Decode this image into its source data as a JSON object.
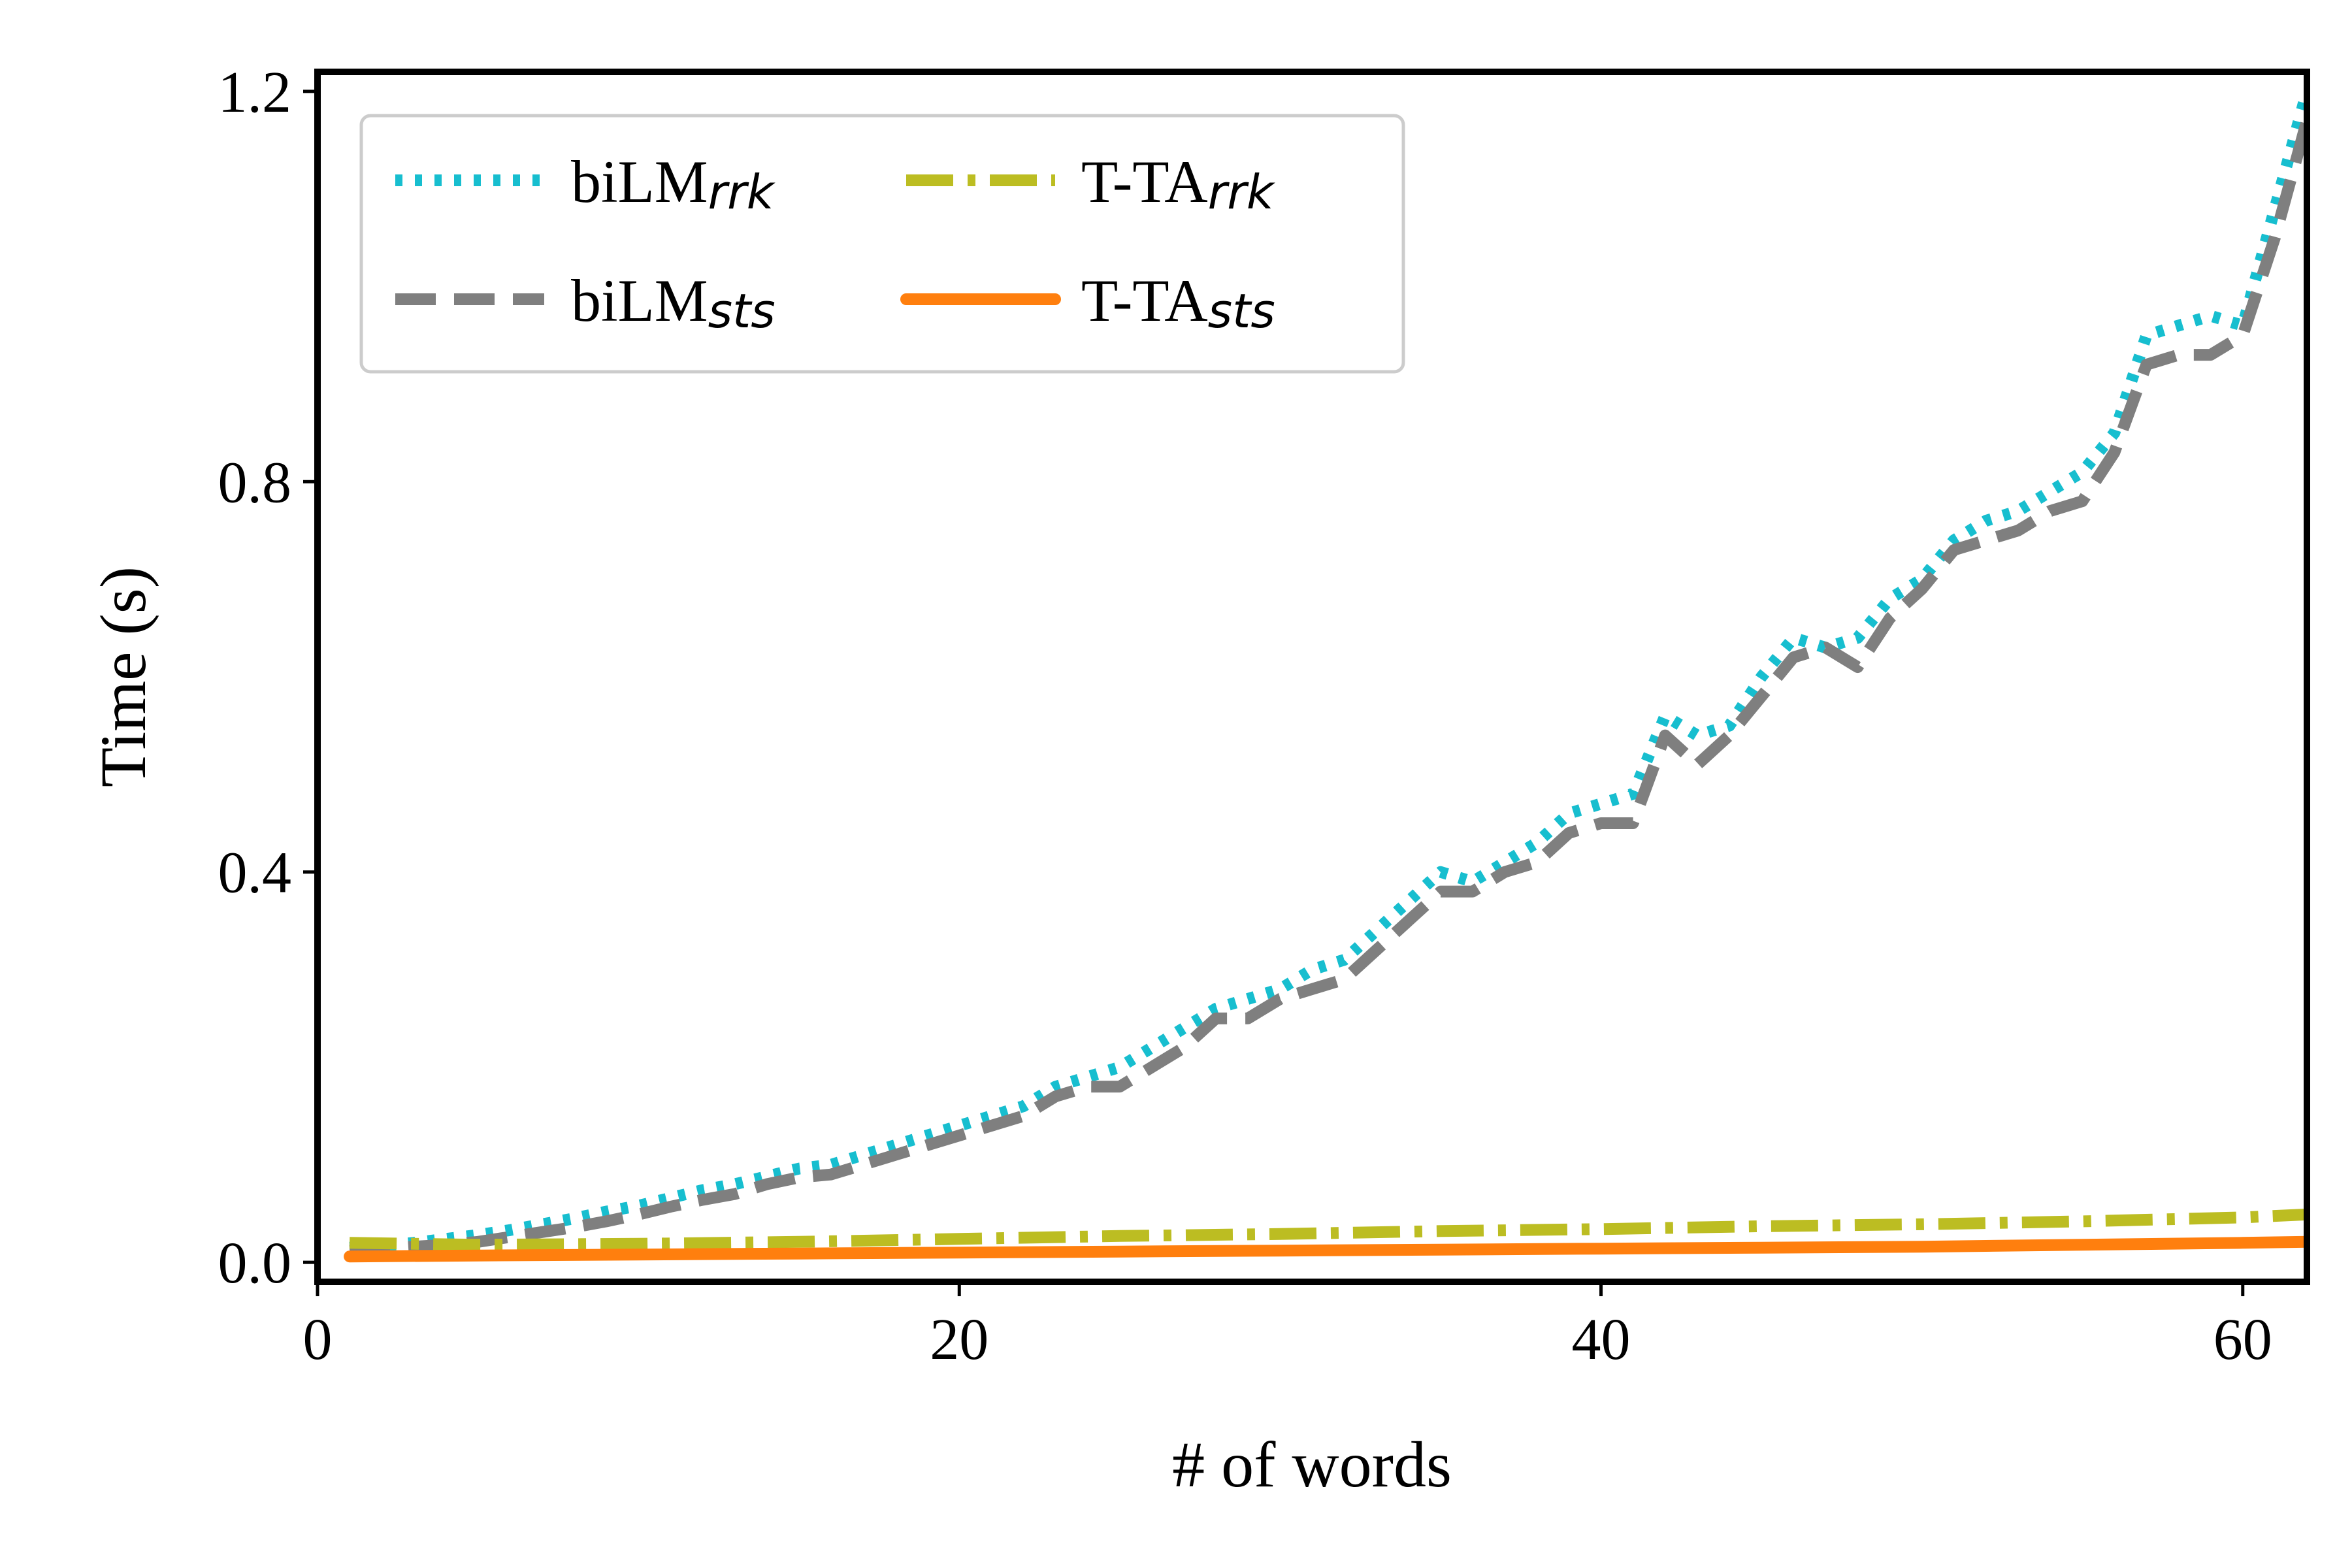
{
  "chart_data": {
    "type": "line",
    "title": "",
    "xlabel": "# of words",
    "ylabel": "Time (s)",
    "xlim": [
      0,
      62
    ],
    "ylim": [
      -0.02,
      1.22
    ],
    "xticks": [
      0,
      20,
      40,
      60
    ],
    "xtick_labels": [
      "0",
      "20",
      "40",
      "60"
    ],
    "yticks": [
      0.0,
      0.4,
      0.8,
      1.2
    ],
    "ytick_labels": [
      "0.0",
      "0.4",
      "0.8",
      "1.2"
    ],
    "grid": false,
    "legend": {
      "position": "top-left",
      "columns": 2
    },
    "series": [
      {
        "name": "biLMrrk",
        "label_main": "biLM",
        "label_sub": "rrk",
        "color": "#17becf",
        "style": "dotted",
        "x": [
          1,
          2,
          3,
          4,
          5,
          6,
          7,
          8,
          9,
          10,
          11,
          12,
          13,
          14,
          15,
          16,
          17,
          18,
          19,
          20,
          21,
          22,
          23,
          24,
          25,
          26,
          27,
          28,
          29,
          30,
          31,
          32,
          33,
          34,
          35,
          36,
          37,
          38,
          39,
          40,
          41,
          42,
          43,
          44,
          45,
          46,
          47,
          48,
          49,
          50,
          51,
          52,
          53,
          54,
          55,
          56,
          57,
          58,
          59,
          60,
          61,
          62
        ],
        "y": [
          0.015,
          0.017,
          0.02,
          0.024,
          0.028,
          0.033,
          0.039,
          0.045,
          0.052,
          0.058,
          0.066,
          0.074,
          0.08,
          0.088,
          0.096,
          0.1,
          0.11,
          0.12,
          0.13,
          0.14,
          0.15,
          0.16,
          0.18,
          0.19,
          0.2,
          0.22,
          0.24,
          0.26,
          0.27,
          0.28,
          0.3,
          0.31,
          0.34,
          0.37,
          0.4,
          0.39,
          0.41,
          0.43,
          0.46,
          0.47,
          0.48,
          0.56,
          0.54,
          0.55,
          0.6,
          0.64,
          0.63,
          0.64,
          0.68,
          0.7,
          0.74,
          0.76,
          0.77,
          0.79,
          0.81,
          0.85,
          0.95,
          0.96,
          0.97,
          0.96,
          1.08,
          1.2
        ]
      },
      {
        "name": "biLMsts",
        "label_main": "biLM",
        "label_sub": "sts",
        "color": "#7f7f7f",
        "style": "dashed",
        "x": [
          1,
          2,
          3,
          4,
          5,
          6,
          7,
          8,
          9,
          10,
          11,
          12,
          13,
          14,
          15,
          16,
          17,
          18,
          19,
          20,
          21,
          22,
          23,
          24,
          25,
          26,
          27,
          28,
          29,
          30,
          31,
          32,
          33,
          34,
          35,
          36,
          37,
          38,
          39,
          40,
          41,
          42,
          43,
          44,
          45,
          46,
          47,
          48,
          49,
          50,
          51,
          52,
          53,
          54,
          55,
          56,
          57,
          58,
          59,
          60,
          61,
          62
        ],
        "y": [
          0.012,
          0.014,
          0.016,
          0.018,
          0.021,
          0.026,
          0.031,
          0.036,
          0.042,
          0.049,
          0.057,
          0.064,
          0.07,
          0.08,
          0.087,
          0.09,
          0.1,
          0.11,
          0.12,
          0.13,
          0.14,
          0.15,
          0.17,
          0.18,
          0.18,
          0.2,
          0.22,
          0.25,
          0.25,
          0.27,
          0.28,
          0.29,
          0.32,
          0.35,
          0.38,
          0.38,
          0.4,
          0.41,
          0.44,
          0.45,
          0.45,
          0.54,
          0.51,
          0.54,
          0.58,
          0.62,
          0.63,
          0.61,
          0.66,
          0.69,
          0.73,
          0.74,
          0.75,
          0.77,
          0.78,
          0.83,
          0.92,
          0.93,
          0.93,
          0.95,
          1.05,
          1.17
        ]
      },
      {
        "name": "T-TArrk",
        "label_main": "T-TA",
        "label_sub": "rrk",
        "color": "#bcbd22",
        "style": "dashdot",
        "x": [
          1,
          5,
          10,
          15,
          20,
          25,
          30,
          35,
          40,
          45,
          50,
          55,
          60,
          62
        ],
        "y": [
          0.02,
          0.018,
          0.019,
          0.021,
          0.024,
          0.027,
          0.029,
          0.032,
          0.034,
          0.037,
          0.039,
          0.042,
          0.046,
          0.049
        ]
      },
      {
        "name": "T-TAsts",
        "label_main": "T-TA",
        "label_sub": "sts",
        "color": "#ff7f0e",
        "style": "solid",
        "x": [
          1,
          5,
          10,
          15,
          20,
          25,
          30,
          35,
          40,
          45,
          50,
          55,
          60,
          62
        ],
        "y": [
          0.006,
          0.007,
          0.008,
          0.009,
          0.01,
          0.011,
          0.012,
          0.013,
          0.014,
          0.015,
          0.016,
          0.018,
          0.02,
          0.021
        ]
      }
    ]
  }
}
